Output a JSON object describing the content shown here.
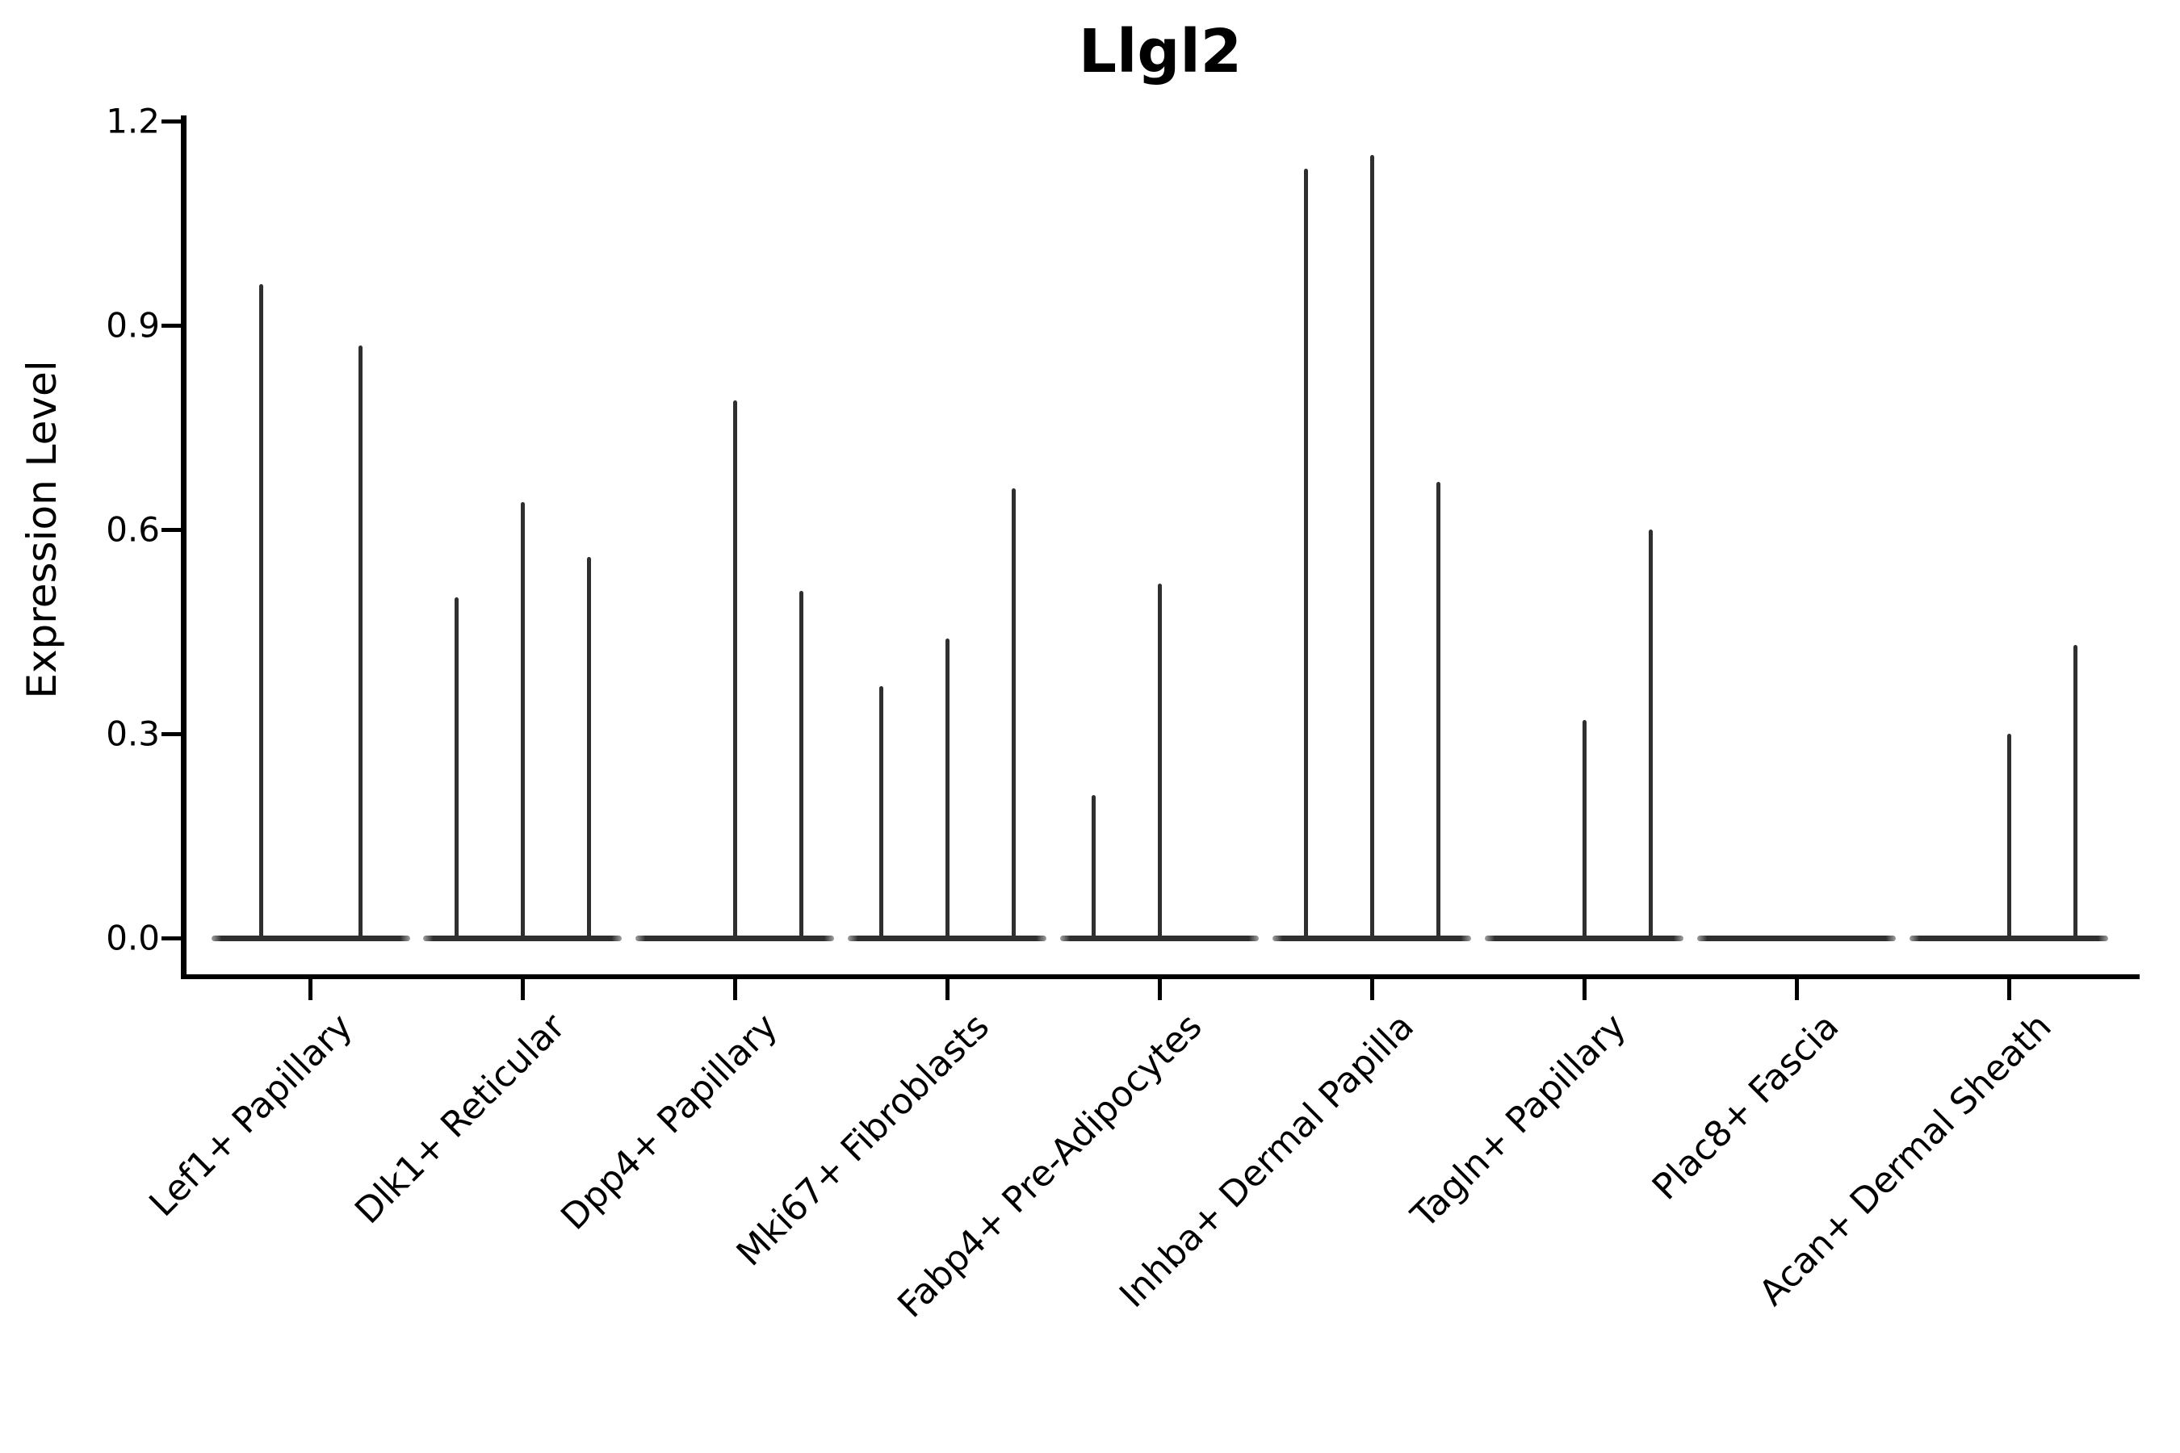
{
  "title": "Llgl2",
  "ylabel": "Expression Level",
  "colors": {
    "violin": "#2f2f2f",
    "axis": "#000000",
    "text": "#000000",
    "background": "#ffffff"
  },
  "chart_data": {
    "type": "violin",
    "title": "Llgl2",
    "xlabel": "",
    "ylabel": "Expression Level",
    "ylim": [
      0,
      1.2
    ],
    "y_tick_values": [
      0.0,
      0.3,
      0.6,
      0.9,
      1.2
    ],
    "y_tick_labels": [
      "0.0",
      "0.3",
      "0.6",
      "0.9",
      "1.2"
    ],
    "grid": false,
    "legend": false,
    "x_tick_rotation_deg": 45,
    "categories": [
      "Lef1+ Papillary",
      "Dlk1+ Reticular",
      "Dpp4+ Papillary",
      "Mki67+ Fibroblasts",
      "Fabp4+ Pre-Adipocytes",
      "Inhba+ Dermal Papilla",
      "Tagln+ Papillary",
      "Plac8+ Fascia",
      "Acan+ Dermal Sheath"
    ],
    "groups": [
      {
        "category": "Lef1+ Papillary",
        "violin_max_values": [
          0.96,
          0.87
        ]
      },
      {
        "category": "Dlk1+ Reticular",
        "violin_max_values": [
          0.5,
          0.64,
          0.56
        ]
      },
      {
        "category": "Dpp4+ Papillary",
        "violin_max_values": [
          0.0,
          0.79,
          0.51
        ]
      },
      {
        "category": "Mki67+ Fibroblasts",
        "violin_max_values": [
          0.37,
          0.44,
          0.66
        ]
      },
      {
        "category": "Fabp4+ Pre-Adipocytes",
        "violin_max_values": [
          0.21,
          0.52,
          0.0
        ]
      },
      {
        "category": "Inhba+ Dermal Papilla",
        "violin_max_values": [
          1.13,
          1.15,
          0.67
        ]
      },
      {
        "category": "Tagln+ Papillary",
        "violin_max_values": [
          0.0,
          0.32,
          0.6
        ]
      },
      {
        "category": "Plac8+ Fascia",
        "violin_max_values": [
          0.0,
          0.0,
          0.0
        ]
      },
      {
        "category": "Acan+ Dermal Sheath",
        "violin_max_values": [
          0.0,
          0.3,
          0.43
        ]
      }
    ],
    "description": "Each category shows flat-at-zero violins; nonzero entries are thin density spikes reaching the listed maximum expression value."
  }
}
